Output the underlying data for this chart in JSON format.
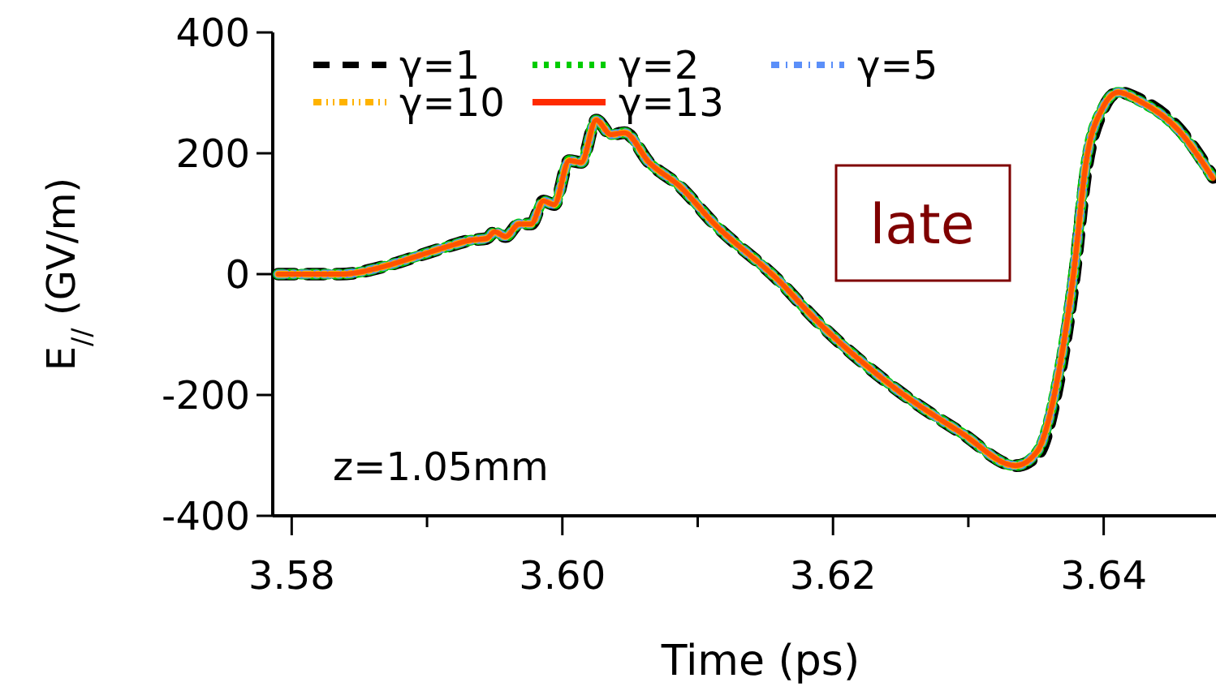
{
  "chart_data": {
    "type": "line",
    "xlabel": "Time (ps)",
    "ylabel": "E$_{//}$ (GV/m)",
    "xlim": [
      3.5786,
      3.6483
    ],
    "ylim": [
      -400,
      400
    ],
    "xticks": [
      3.58,
      {
        "value": 3.59,
        "label": null
      },
      "3.60",
      {
        "value": 3.61,
        "label": null
      },
      3.62,
      {
        "value": 3.63,
        "label": null
      },
      3.64
    ],
    "yticks": [
      -400,
      -200,
      0,
      200,
      400
    ],
    "grid": false,
    "legend": "top left",
    "marker": "none",
    "annotations": [
      "late",
      "z=1.05mm"
    ],
    "x": [
      3.579,
      3.5836,
      3.5872,
      3.5896,
      3.5916,
      3.5932,
      3.5944,
      3.595,
      3.5958,
      3.5968,
      3.5977,
      3.5986,
      3.5994,
      3.6005,
      3.6014,
      3.6025,
      3.6036,
      3.6046,
      3.6064,
      3.6087,
      3.6111,
      3.616,
      3.6187,
      3.6247,
      3.6295,
      3.6335,
      3.6351,
      3.6366,
      3.6378,
      3.6387,
      3.6399,
      3.6411,
      3.6426,
      3.6455,
      3.6481
    ],
    "series": [
      {
        "name": "γ=1",
        "color": "#000000",
        "line_style": "dashed",
        "values": [
          0,
          0,
          15,
          32,
          46,
          56,
          59,
          70,
          62,
          83,
          83,
          121,
          115,
          188,
          185,
          255,
          231,
          234,
          185,
          145,
          86,
          -11,
          -75,
          -191,
          -263,
          -317,
          -300,
          -185,
          -10,
          170,
          270,
          301,
          290,
          242,
          160
        ]
      },
      {
        "name": "γ=2",
        "color": "#00cc00",
        "line_style": "dotted",
        "values": [
          0,
          0,
          15,
          32,
          46,
          56,
          59,
          70,
          62,
          83,
          83,
          121,
          115,
          188,
          185,
          255,
          231,
          234,
          185,
          145,
          86,
          -11,
          -75,
          -191,
          -263,
          -317,
          -293,
          -172,
          5,
          185,
          274,
          301,
          287,
          239,
          158
        ]
      },
      {
        "name": "γ=5",
        "color": "#5b8ff9",
        "line_style": "dashdot",
        "values": [
          0,
          0,
          15,
          32,
          46,
          56,
          59,
          70,
          62,
          83,
          83,
          121,
          115,
          188,
          185,
          255,
          231,
          234,
          185,
          145,
          86,
          -11,
          -75,
          -191,
          -263,
          -317,
          -293,
          -172,
          5,
          185,
          274,
          301,
          287,
          239,
          158
        ]
      },
      {
        "name": "γ=10",
        "color": "#ffb300",
        "line_style": "dashdotdot",
        "values": [
          0,
          0,
          15,
          32,
          46,
          56,
          59,
          70,
          62,
          83,
          83,
          121,
          115,
          188,
          185,
          255,
          231,
          234,
          185,
          145,
          86,
          -11,
          -75,
          -191,
          -263,
          -317,
          -293,
          -172,
          5,
          185,
          274,
          301,
          287,
          239,
          158
        ]
      },
      {
        "name": "γ=13",
        "color": "#ff2a00",
        "line_style": "solid",
        "values": [
          0,
          0,
          15,
          32,
          46,
          56,
          59,
          70,
          62,
          83,
          83,
          121,
          115,
          188,
          185,
          255,
          231,
          234,
          185,
          145,
          86,
          -11,
          -75,
          -191,
          -263,
          -317,
          -293,
          -172,
          5,
          185,
          274,
          301,
          287,
          239,
          158
        ]
      }
    ]
  }
}
